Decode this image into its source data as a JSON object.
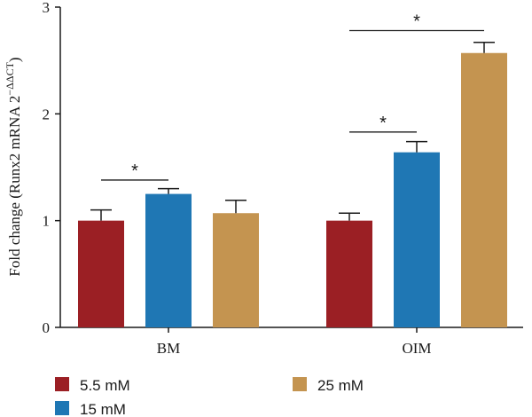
{
  "chart_data": {
    "type": "bar",
    "ylabel_main": "Fold change (Runx2 mRNA 2",
    "ylabel_sup": "−ΔΔCT",
    "ylabel_close": ")",
    "ylim": [
      0,
      3
    ],
    "yticks": [
      0,
      1,
      2,
      3
    ],
    "categories": [
      "BM",
      "OIM"
    ],
    "series": [
      {
        "name": "5.5 mM",
        "color": "#9b1f24",
        "values": [
          1.0,
          1.0
        ],
        "errors": [
          0.1,
          0.07
        ]
      },
      {
        "name": "15 mM",
        "color": "#1f77b4",
        "values": [
          1.25,
          1.64
        ],
        "errors": [
          0.05,
          0.1
        ]
      },
      {
        "name": "25 mM",
        "color": "#c49450",
        "values": [
          1.07,
          2.57
        ],
        "errors": [
          0.12,
          0.1
        ]
      }
    ],
    "significance": [
      {
        "group": 0,
        "from": 0,
        "to": 1,
        "label": "*",
        "y": 1.38
      },
      {
        "group": 1,
        "from": 0,
        "to": 1,
        "label": "*",
        "y": 1.83
      },
      {
        "group": 1,
        "from": 0,
        "to": 2,
        "label": "*",
        "y": 2.78
      }
    ],
    "grid": false,
    "legend_placement": "bottom"
  }
}
